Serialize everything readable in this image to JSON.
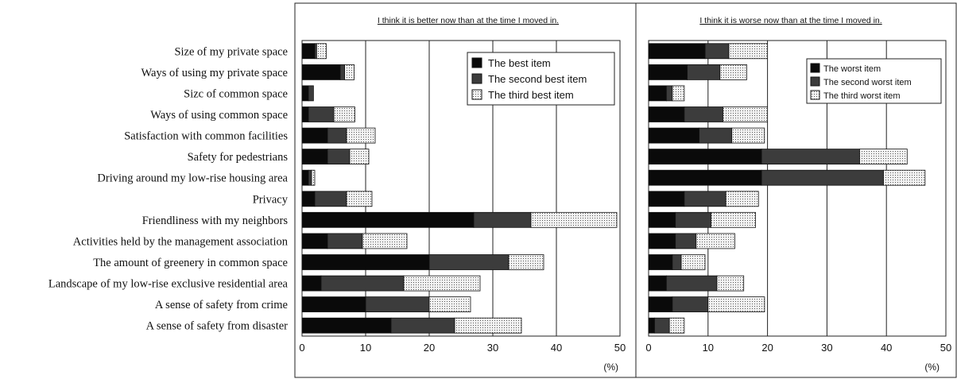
{
  "chart_data": {
    "type": "bar",
    "categories": [
      "Size of my private space",
      "Ways of using my private space",
      "Sizc of common space",
      "Ways of using common space",
      "Satisfaction with common facilities",
      "Safety for pedestrians",
      "Driving around my low-rise housing area",
      "Privacy",
      "Friendliness with my neighbors",
      "Activities held by the management association",
      "The amount of greenery in common space",
      "Landscape of my low-rise exclusive residential area",
      "A sense of safety from crime",
      "A sense of safety from disaster"
    ],
    "xlim": [
      0,
      50
    ],
    "xticks": [
      "0",
      "10",
      "20",
      "30",
      "40",
      "50"
    ],
    "unit": "(%)",
    "colors": {
      "first": "#0a0a0a",
      "second": "#3c3c3c",
      "third_bg": "#f2f2f2",
      "third_dot": "#555555",
      "grid": "#222222"
    },
    "panels": [
      {
        "title": "I think it is better now than at the time I moved in.",
        "legend_position": "top-right",
        "series": [
          {
            "name": "The best item",
            "values": [
              2,
              6,
              1,
              1,
              4,
              4,
              1,
              2,
              27,
              4,
              20,
              3,
              10,
              14
            ]
          },
          {
            "name": "The second best item",
            "values": [
              0.3,
              0.7,
              0.8,
              4,
              3,
              3.5,
              0.5,
              5,
              9,
              5.5,
              12.5,
              13,
              10,
              10
            ]
          },
          {
            "name": "The third best item",
            "values": [
              1.5,
              1.5,
              0,
              3.3,
              4.5,
              3,
              0.5,
              4,
              13.5,
              7,
              5.5,
              12,
              6.5,
              10.5
            ]
          }
        ]
      },
      {
        "title": "I think it is worse now than at the time I moved in.",
        "legend_position": "top-right",
        "series": [
          {
            "name": "The worst item",
            "values": [
              9.5,
              6.5,
              3,
              6,
              8.5,
              19,
              19,
              6,
              4.5,
              4.5,
              4,
              3,
              4,
              1
            ]
          },
          {
            "name": "The second worst item",
            "values": [
              4,
              5.5,
              1,
              6.5,
              5.5,
              16.5,
              20.5,
              7,
              6,
              3.5,
              1.5,
              8.5,
              6,
              2.5
            ]
          },
          {
            "name": "The third worst item",
            "values": [
              6.5,
              4.5,
              2,
              7.5,
              5.5,
              8,
              7,
              5.5,
              7.5,
              6.5,
              4,
              4.5,
              9.5,
              2.5
            ]
          }
        ]
      }
    ]
  }
}
